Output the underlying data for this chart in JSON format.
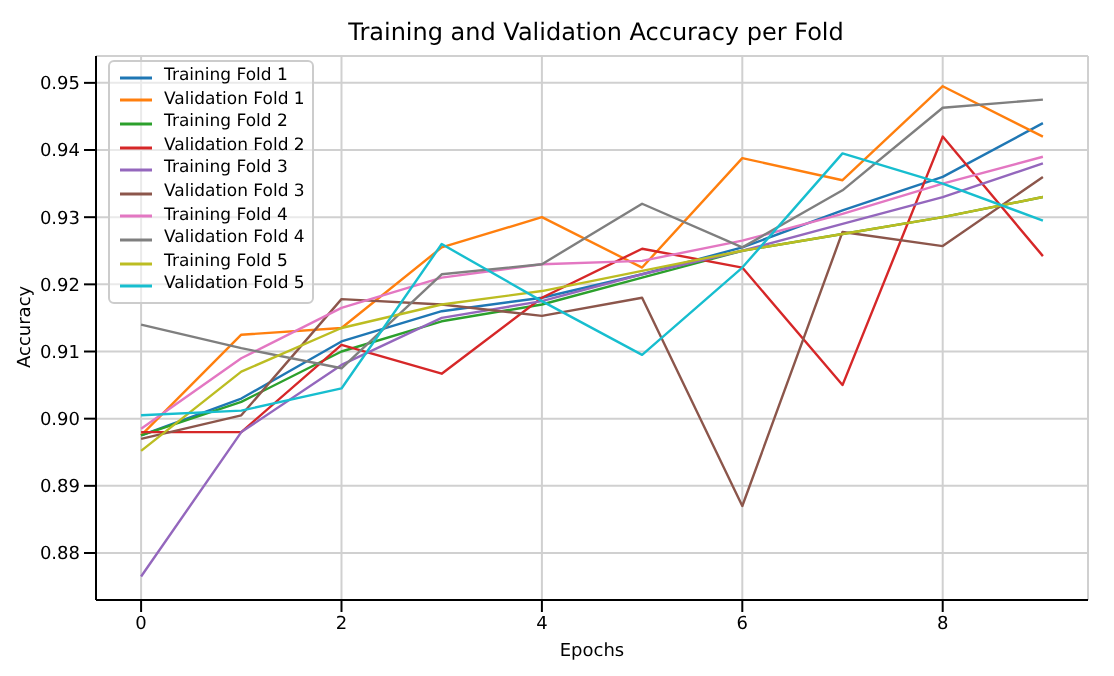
{
  "chart_data": {
    "type": "line",
    "title": "Training and Validation Accuracy per Fold",
    "xlabel": "Epochs",
    "ylabel": "Accuracy",
    "x": [
      0,
      1,
      2,
      3,
      4,
      5,
      6,
      7,
      8,
      9
    ],
    "series": [
      {
        "name": "Training Fold 1",
        "color": "#1f77b4",
        "values": [
          0.8975,
          0.903,
          0.9115,
          0.916,
          0.918,
          0.9215,
          0.9255,
          0.931,
          0.936,
          0.944
        ]
      },
      {
        "name": "Validation Fold 1",
        "color": "#ff7f0e",
        "values": [
          0.8975,
          0.9125,
          0.9135,
          0.9255,
          0.93,
          0.9225,
          0.9388,
          0.9355,
          0.9495,
          0.942
        ]
      },
      {
        "name": "Training Fold 2",
        "color": "#2ca02c",
        "values": [
          0.8975,
          0.9025,
          0.91,
          0.9145,
          0.917,
          0.921,
          0.925,
          0.9275,
          0.93,
          0.933
        ]
      },
      {
        "name": "Validation Fold 2",
        "color": "#d62728",
        "values": [
          0.898,
          0.898,
          0.911,
          0.9067,
          0.918,
          0.9253,
          0.9225,
          0.905,
          0.942,
          0.9242
        ]
      },
      {
        "name": "Training Fold 3",
        "color": "#9467bd",
        "values": [
          0.8765,
          0.898,
          0.908,
          0.915,
          0.9175,
          0.9215,
          0.925,
          0.929,
          0.933,
          0.938
        ]
      },
      {
        "name": "Validation Fold 3",
        "color": "#8c564b",
        "values": [
          0.897,
          0.9005,
          0.9178,
          0.917,
          0.9153,
          0.918,
          0.887,
          0.9278,
          0.9257,
          0.936
        ]
      },
      {
        "name": "Training Fold 4",
        "color": "#e377c2",
        "values": [
          0.8985,
          0.909,
          0.9165,
          0.921,
          0.923,
          0.9235,
          0.9265,
          0.9305,
          0.935,
          0.939
        ]
      },
      {
        "name": "Validation Fold 4",
        "color": "#7f7f7f",
        "values": [
          0.914,
          0.9105,
          0.9075,
          0.9215,
          0.923,
          0.932,
          0.9255,
          0.934,
          0.9463,
          0.9475
        ]
      },
      {
        "name": "Training Fold 5",
        "color": "#bcbd22",
        "values": [
          0.8952,
          0.907,
          0.9135,
          0.917,
          0.919,
          0.922,
          0.925,
          0.9275,
          0.93,
          0.933
        ]
      },
      {
        "name": "Validation Fold 5",
        "color": "#17becf",
        "values": [
          0.9005,
          0.9012,
          0.9045,
          0.926,
          0.9175,
          0.9095,
          0.9225,
          0.9395,
          0.935,
          0.9295
        ]
      }
    ],
    "xlim": [
      -0.45,
      9.45
    ],
    "xticks": [
      0,
      2,
      4,
      6,
      8
    ],
    "ylim": [
      0.873,
      0.954
    ],
    "yticks": [
      0.88,
      0.89,
      {
        "value": 0.9,
        "label": "0.90"
      },
      0.91,
      0.92,
      0.93,
      0.94,
      0.95
    ],
    "grid": true,
    "legend": "top left",
    "marker": "none",
    "line_style": "solid"
  }
}
